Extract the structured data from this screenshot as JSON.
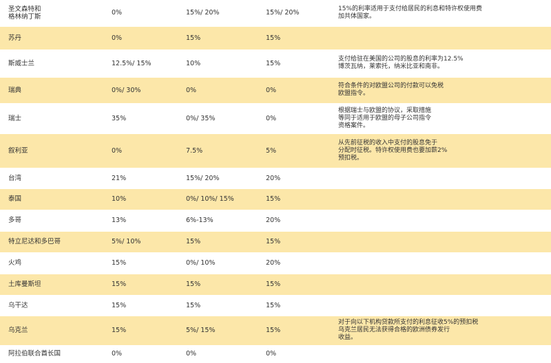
{
  "table": {
    "rows": [
      {
        "country": "圣文森特和\n格林纳丁斯",
        "c1": "0%",
        "c2": "15%/ 20%",
        "c3": "15%/ 20%",
        "note": "15%的利率适用于支付给居民的利息和特许权使用费\n加共体国家。"
      },
      {
        "country": "苏丹",
        "c1": "0%",
        "c2": "15%",
        "c3": "15%",
        "note": ""
      },
      {
        "country": "斯威士兰",
        "c1": "12.5%/ 15%",
        "c2": "10%",
        "c3": "15%",
        "note": "支付给驻在美国的公司的股息的利率为12.5%\n博茨瓦纳，莱索托，纳米比亚和南非。"
      },
      {
        "country": "瑞典",
        "c1": "0%/ 30%",
        "c2": "0%",
        "c3": "0%",
        "note": "符合条件的对欧盟公司的付款可以免税\n欧盟指令。"
      },
      {
        "country": "瑞士",
        "c1": "35%",
        "c2": "0%/ 35%",
        "c3": "0%",
        "note": "根据瑞士与欧盟的协议，采取措施\n等同于适用于欧盟的母子公司指令\n资格案件。"
      },
      {
        "country": "叙利亚",
        "c1": "0%",
        "c2": "7.5%",
        "c3": "5%",
        "note": "从先前征税的收入中支付的股息免于\n分配时征税。特许权使用费也要加薪2%\n预扣税。"
      },
      {
        "country": "台湾",
        "c1": "21%",
        "c2": "15%/ 20%",
        "c3": "20%",
        "note": ""
      },
      {
        "country": "泰国",
        "c1": "10%",
        "c2": "0%/ 10%/ 15%",
        "c3": "15%",
        "note": ""
      },
      {
        "country": "多哥",
        "c1": "13%",
        "c2": "6%-13%",
        "c3": "20%",
        "note": ""
      },
      {
        "country": "特立尼达和多巴哥",
        "c1": "5%/ 10%",
        "c2": "15%",
        "c3": "15%",
        "note": ""
      },
      {
        "country": "火鸡",
        "c1": "15%",
        "c2": "0%/ 10%",
        "c3": "20%",
        "note": ""
      },
      {
        "country": "土库曼斯坦",
        "c1": "15%",
        "c2": "15%",
        "c3": "15%",
        "note": ""
      },
      {
        "country": "乌干达",
        "c1": "15%",
        "c2": "15%",
        "c3": "15%",
        "note": ""
      },
      {
        "country": "乌克兰",
        "c1": "15%",
        "c2": "5%/ 15%",
        "c3": "15%",
        "note": "对于向以下机构贷款所支付的利息征收5%的预扣税\n乌克兰居民无法获得合格的欧洲债券发行\n收益。"
      },
      {
        "country": "阿拉伯联合酋长国",
        "c1": "0%",
        "c2": "0%",
        "c3": "0%",
        "note": ""
      }
    ]
  }
}
